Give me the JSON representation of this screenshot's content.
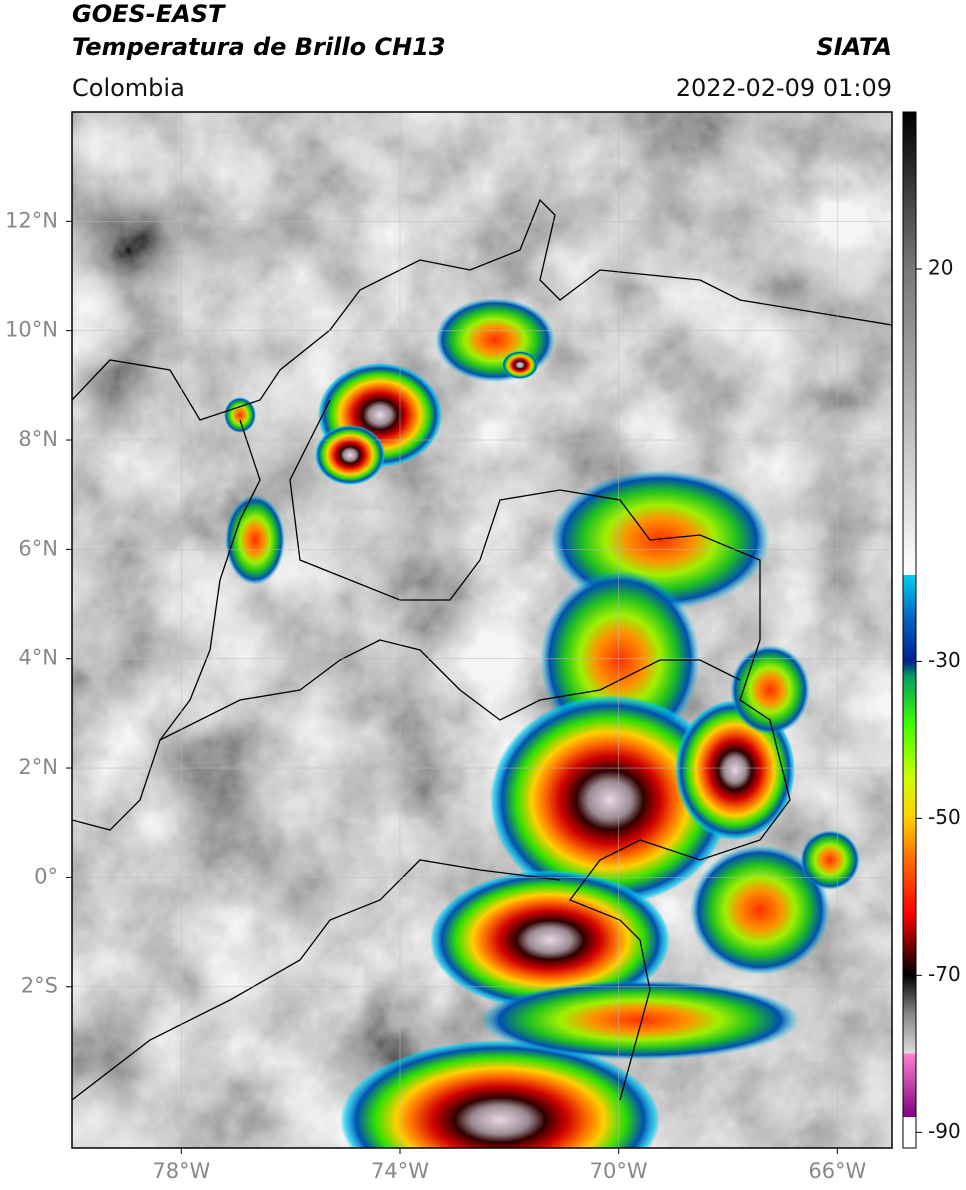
{
  "header": {
    "title_line1": "GOES-EAST",
    "title_line2": "Temperatura de Brillo CH13",
    "source": "SIATA",
    "region": "Colombia",
    "timestamp": "2022-02-09 01:09"
  },
  "map": {
    "lon_range": [
      -80,
      -65
    ],
    "lat_range": [
      -4.95,
      14
    ],
    "lon_ticks": [
      {
        "value": -78,
        "label": "78°W"
      },
      {
        "value": -74,
        "label": "74°W"
      },
      {
        "value": -70,
        "label": "70°W"
      },
      {
        "value": -66,
        "label": "66°W"
      }
    ],
    "lat_ticks": [
      {
        "value": 12,
        "label": "12°N"
      },
      {
        "value": 10,
        "label": "10°N"
      },
      {
        "value": 8,
        "label": "8°N"
      },
      {
        "value": 6,
        "label": "6°N"
      },
      {
        "value": 4,
        "label": "4°N"
      },
      {
        "value": 2,
        "label": "2°N"
      },
      {
        "value": 0,
        "label": "0°"
      },
      {
        "value": -2,
        "label": "2°S"
      }
    ]
  },
  "colorbar": {
    "range": [
      -92,
      40
    ],
    "ticks": [
      20,
      -30,
      -50,
      -70,
      -90
    ]
  }
}
